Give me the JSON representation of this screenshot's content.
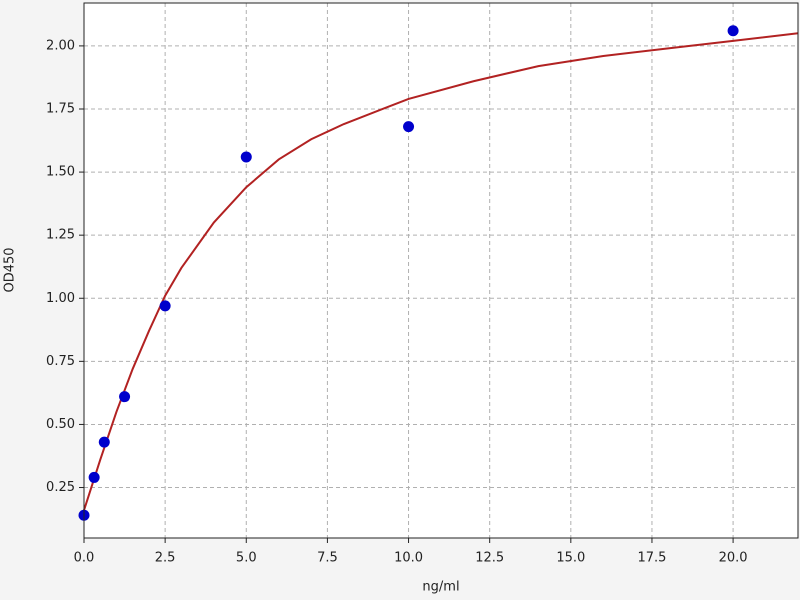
{
  "chart_data": {
    "type": "scatter",
    "x_label": "ng/ml",
    "y_label": "OD450",
    "xlim": [
      0,
      22
    ],
    "ylim": [
      0.05,
      2.17
    ],
    "xticks": [
      {
        "value": 0,
        "label": "0.0"
      },
      {
        "value": 2.5,
        "label": "2.5"
      },
      {
        "value": 5,
        "label": "5.0"
      },
      {
        "value": 7.5,
        "label": "7.5"
      },
      {
        "value": 10,
        "label": "10.0"
      },
      {
        "value": 12.5,
        "label": "12.5"
      },
      {
        "value": 15,
        "label": "15.0"
      },
      {
        "value": 17.5,
        "label": "17.5"
      },
      {
        "value": 20,
        "label": "20.0"
      }
    ],
    "yticks": [
      0.25,
      {
        "value": 0.5,
        "label": "0.50"
      },
      0.75,
      {
        "value": 1,
        "label": "1.00"
      },
      1.25,
      {
        "value": 1.5,
        "label": "1.50"
      },
      1.75,
      {
        "value": 2,
        "label": "2.00"
      }
    ],
    "grid": true,
    "series": [
      {
        "type": "line",
        "color": "#b22222",
        "x": [
          0,
          0.5,
          1,
          1.5,
          2,
          2.5,
          3,
          4,
          5,
          6,
          7,
          8,
          10,
          12,
          14,
          16,
          18,
          20,
          22
        ],
        "values": [
          0.16,
          0.36,
          0.55,
          0.72,
          0.87,
          1.01,
          1.12,
          1.3,
          1.44,
          1.55,
          1.63,
          1.69,
          1.79,
          1.86,
          1.92,
          1.96,
          1.99,
          2.02,
          2.05
        ]
      },
      {
        "type": "scatter",
        "color": "#0000cc",
        "x": [
          0,
          0.3125,
          0.625,
          1.25,
          2.5,
          5,
          10,
          20
        ],
        "values": [
          0.14,
          0.29,
          0.43,
          0.61,
          0.97,
          1.56,
          1.68,
          2.06
        ]
      }
    ]
  }
}
